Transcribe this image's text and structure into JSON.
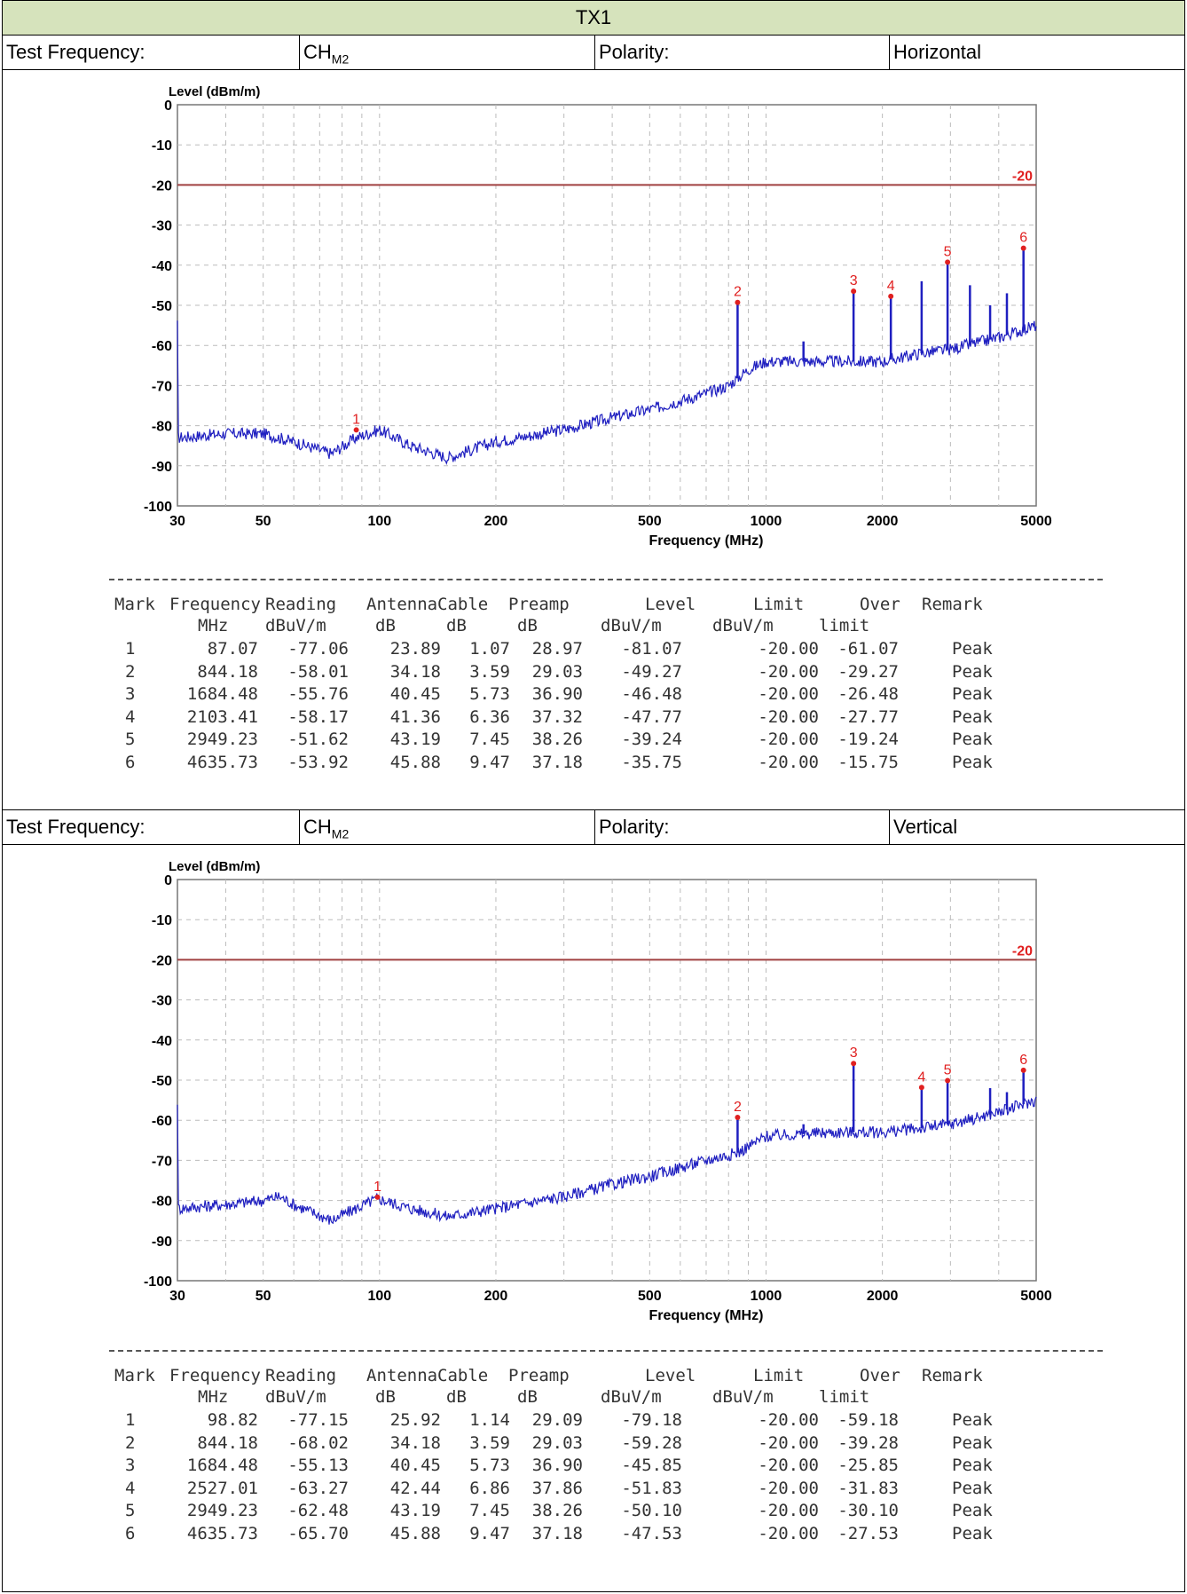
{
  "title": "TX1",
  "sections": [
    {
      "info": {
        "test_freq_label": "Test Frequency:",
        "channel": "CH",
        "channel_sub": "M2",
        "polarity_label": "Polarity:",
        "polarity": "Horizontal"
      },
      "chart_data": {
        "type": "line",
        "ylabel": "Level (dBm/m)",
        "xlabel": "Frequency (MHz)",
        "xscale": "log",
        "xlim": [
          30,
          5000
        ],
        "ylim": [
          -100,
          0
        ],
        "xticks": [
          30,
          50,
          100,
          200,
          500,
          1000,
          2000,
          5000
        ],
        "xtick_labels": [
          "30",
          "50",
          "100",
          "200",
          "500",
          "1000",
          "2000",
          "5000"
        ],
        "yticks": [
          0,
          -10,
          -20,
          -30,
          -40,
          -50,
          -60,
          -70,
          -80,
          -90,
          -100
        ],
        "ytick_labels": [
          "0",
          "-10",
          "-20",
          "-30",
          "-40",
          "-50",
          "-60",
          "-70",
          "-80",
          "-90",
          "-100"
        ],
        "grid": true,
        "limit_line": {
          "value": -20,
          "label": "-20",
          "color": "#a04040"
        },
        "trace_color": "#1f1fc0",
        "marker_color": "#e02020",
        "noise_floor": [
          [
            30,
            -83
          ],
          [
            40,
            -82
          ],
          [
            50,
            -82
          ],
          [
            60,
            -84
          ],
          [
            75,
            -87
          ],
          [
            87,
            -83
          ],
          [
            100,
            -81
          ],
          [
            120,
            -85
          ],
          [
            150,
            -88
          ],
          [
            200,
            -84
          ],
          [
            300,
            -81
          ],
          [
            400,
            -78
          ],
          [
            500,
            -76
          ],
          [
            700,
            -72
          ],
          [
            800,
            -70
          ],
          [
            900,
            -66
          ],
          [
            1000,
            -64
          ],
          [
            1500,
            -64
          ],
          [
            2000,
            -64
          ],
          [
            2500,
            -62
          ],
          [
            3000,
            -61
          ],
          [
            4000,
            -58
          ],
          [
            5000,
            -55
          ]
        ],
        "spikes": [
          [
            844.18,
            -49.27
          ],
          [
            1250,
            -59
          ],
          [
            1684.48,
            -46.48
          ],
          [
            2103.41,
            -47.77
          ],
          [
            2527,
            -44
          ],
          [
            2949.23,
            -39.24
          ],
          [
            3370,
            -45
          ],
          [
            3800,
            -50
          ],
          [
            4200,
            -47
          ],
          [
            4635.73,
            -35.75
          ]
        ],
        "markers": [
          {
            "mark": "1",
            "freq": 87.07,
            "level": -81.07
          },
          {
            "mark": "2",
            "freq": 844.18,
            "level": -49.27
          },
          {
            "mark": "3",
            "freq": 1684.48,
            "level": -46.48
          },
          {
            "mark": "4",
            "freq": 2103.41,
            "level": -47.77
          },
          {
            "mark": "5",
            "freq": 2949.23,
            "level": -39.24
          },
          {
            "mark": "6",
            "freq": 4635.73,
            "level": -35.75
          }
        ]
      },
      "table": {
        "headers1": [
          "Mark",
          "Frequency",
          "Reading",
          "Antenna",
          "Cable",
          "Preamp",
          "Level",
          "Limit",
          "Over",
          "Remark"
        ],
        "headers2": [
          "",
          "MHz",
          "dBuV/m",
          "dB",
          "dB",
          "dB",
          "dBuV/m",
          "dBuV/m",
          "limit",
          ""
        ],
        "rows": [
          [
            "1",
            "87.07",
            "-77.06",
            "23.89",
            "1.07",
            "28.97",
            "-81.07",
            "-20.00",
            "-61.07",
            "Peak"
          ],
          [
            "2",
            "844.18",
            "-58.01",
            "34.18",
            "3.59",
            "29.03",
            "-49.27",
            "-20.00",
            "-29.27",
            "Peak"
          ],
          [
            "3",
            "1684.48",
            "-55.76",
            "40.45",
            "5.73",
            "36.90",
            "-46.48",
            "-20.00",
            "-26.48",
            "Peak"
          ],
          [
            "4",
            "2103.41",
            "-58.17",
            "41.36",
            "6.36",
            "37.32",
            "-47.77",
            "-20.00",
            "-27.77",
            "Peak"
          ],
          [
            "5",
            "2949.23",
            "-51.62",
            "43.19",
            "7.45",
            "38.26",
            "-39.24",
            "-20.00",
            "-19.24",
            "Peak"
          ],
          [
            "6",
            "4635.73",
            "-53.92",
            "45.88",
            "9.47",
            "37.18",
            "-35.75",
            "-20.00",
            "-15.75",
            "Peak"
          ]
        ]
      }
    },
    {
      "info": {
        "test_freq_label": "Test Frequency:",
        "channel": "CH",
        "channel_sub": "M2",
        "polarity_label": "Polarity:",
        "polarity": "Vertical"
      },
      "chart_data": {
        "type": "line",
        "ylabel": "Level (dBm/m)",
        "xlabel": "Frequency (MHz)",
        "xscale": "log",
        "xlim": [
          30,
          5000
        ],
        "ylim": [
          -100,
          0
        ],
        "xticks": [
          30,
          50,
          100,
          200,
          500,
          1000,
          2000,
          5000
        ],
        "xtick_labels": [
          "30",
          "50",
          "100",
          "200",
          "500",
          "1000",
          "2000",
          "5000"
        ],
        "yticks": [
          0,
          -10,
          -20,
          -30,
          -40,
          -50,
          -60,
          -70,
          -80,
          -90,
          -100
        ],
        "ytick_labels": [
          "0",
          "-10",
          "-20",
          "-30",
          "-40",
          "-50",
          "-60",
          "-70",
          "-80",
          "-90",
          "-100"
        ],
        "grid": true,
        "limit_line": {
          "value": -20,
          "label": "-20",
          "color": "#a04040"
        },
        "trace_color": "#1f1fc0",
        "marker_color": "#e02020",
        "noise_floor": [
          [
            30,
            -82
          ],
          [
            40,
            -81
          ],
          [
            50,
            -80
          ],
          [
            55,
            -79
          ],
          [
            60,
            -81
          ],
          [
            75,
            -85
          ],
          [
            87,
            -82
          ],
          [
            98.82,
            -79.5
          ],
          [
            120,
            -82
          ],
          [
            150,
            -84
          ],
          [
            200,
            -82
          ],
          [
            300,
            -79
          ],
          [
            400,
            -76
          ],
          [
            500,
            -74
          ],
          [
            700,
            -70
          ],
          [
            850,
            -68
          ],
          [
            1000,
            -64
          ],
          [
            1500,
            -63
          ],
          [
            2000,
            -63
          ],
          [
            2500,
            -62
          ],
          [
            3000,
            -61
          ],
          [
            4000,
            -58
          ],
          [
            5000,
            -55
          ]
        ],
        "spikes": [
          [
            844.18,
            -59.28
          ],
          [
            1250,
            -61
          ],
          [
            1684.48,
            -45.85
          ],
          [
            2527.01,
            -51.83
          ],
          [
            2949.23,
            -50.1
          ],
          [
            3800,
            -52
          ],
          [
            4200,
            -53
          ],
          [
            4635.73,
            -47.53
          ]
        ],
        "markers": [
          {
            "mark": "1",
            "freq": 98.82,
            "level": -79.18
          },
          {
            "mark": "2",
            "freq": 844.18,
            "level": -59.28
          },
          {
            "mark": "3",
            "freq": 1684.48,
            "level": -45.85
          },
          {
            "mark": "4",
            "freq": 2527.01,
            "level": -51.83
          },
          {
            "mark": "5",
            "freq": 2949.23,
            "level": -50.1
          },
          {
            "mark": "6",
            "freq": 4635.73,
            "level": -47.53
          }
        ]
      },
      "table": {
        "headers1": [
          "Mark",
          "Frequency",
          "Reading",
          "Antenna",
          "Cable",
          "Preamp",
          "Level",
          "Limit",
          "Over",
          "Remark"
        ],
        "headers2": [
          "",
          "MHz",
          "dBuV/m",
          "dB",
          "dB",
          "dB",
          "dBuV/m",
          "dBuV/m",
          "limit",
          ""
        ],
        "rows": [
          [
            "1",
            "98.82",
            "-77.15",
            "25.92",
            "1.14",
            "29.09",
            "-79.18",
            "-20.00",
            "-59.18",
            "Peak"
          ],
          [
            "2",
            "844.18",
            "-68.02",
            "34.18",
            "3.59",
            "29.03",
            "-59.28",
            "-20.00",
            "-39.28",
            "Peak"
          ],
          [
            "3",
            "1684.48",
            "-55.13",
            "40.45",
            "5.73",
            "36.90",
            "-45.85",
            "-20.00",
            "-25.85",
            "Peak"
          ],
          [
            "4",
            "2527.01",
            "-63.27",
            "42.44",
            "6.86",
            "37.86",
            "-51.83",
            "-20.00",
            "-31.83",
            "Peak"
          ],
          [
            "5",
            "2949.23",
            "-62.48",
            "43.19",
            "7.45",
            "38.26",
            "-50.10",
            "-20.00",
            "-30.10",
            "Peak"
          ],
          [
            "6",
            "4635.73",
            "-65.70",
            "45.88",
            "9.47",
            "37.18",
            "-47.53",
            "-20.00",
            "-27.53",
            "Peak"
          ]
        ]
      }
    }
  ]
}
